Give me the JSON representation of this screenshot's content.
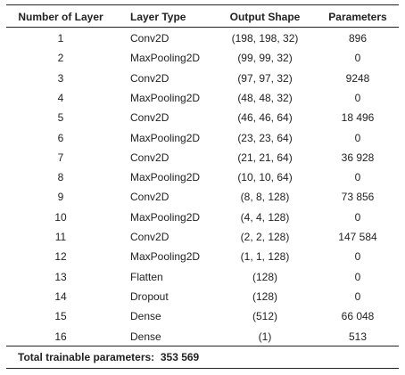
{
  "table": {
    "header": [
      "Number of Layer",
      "Layer Type",
      "Output Shape",
      "Parameters"
    ],
    "rows": [
      [
        "1",
        "Conv2D",
        "(198, 198, 32)",
        "896"
      ],
      [
        "2",
        "MaxPooling2D",
        "(99, 99, 32)",
        "0"
      ],
      [
        "3",
        "Conv2D",
        "(97, 97, 32)",
        "9248"
      ],
      [
        "4",
        "MaxPooling2D",
        "(48, 48, 32)",
        "0"
      ],
      [
        "5",
        "Conv2D",
        "(46, 46, 64)",
        "18 496"
      ],
      [
        "6",
        "MaxPooling2D",
        "(23, 23, 64)",
        "0"
      ],
      [
        "7",
        "Conv2D",
        "(21, 21, 64)",
        "36 928"
      ],
      [
        "8",
        "MaxPooling2D",
        "(10, 10, 64)",
        "0"
      ],
      [
        "9",
        "Conv2D",
        "(8, 8, 128)",
        "73 856"
      ],
      [
        "10",
        "MaxPooling2D",
        "(4, 4, 128)",
        "0"
      ],
      [
        "11",
        "Conv2D",
        "(2, 2, 128)",
        "147 584"
      ],
      [
        "12",
        "MaxPooling2D",
        "(1, 1, 128)",
        "0"
      ],
      [
        "13",
        "Flatten",
        "(128)",
        "0"
      ],
      [
        "14",
        "Dropout",
        "(128)",
        "0"
      ],
      [
        "15",
        "Dense",
        "(512)",
        "66 048"
      ],
      [
        "16",
        "Dense",
        "(1)",
        "513"
      ]
    ],
    "footer": {
      "label": "Total trainable parameters:",
      "value": "353 569"
    }
  }
}
